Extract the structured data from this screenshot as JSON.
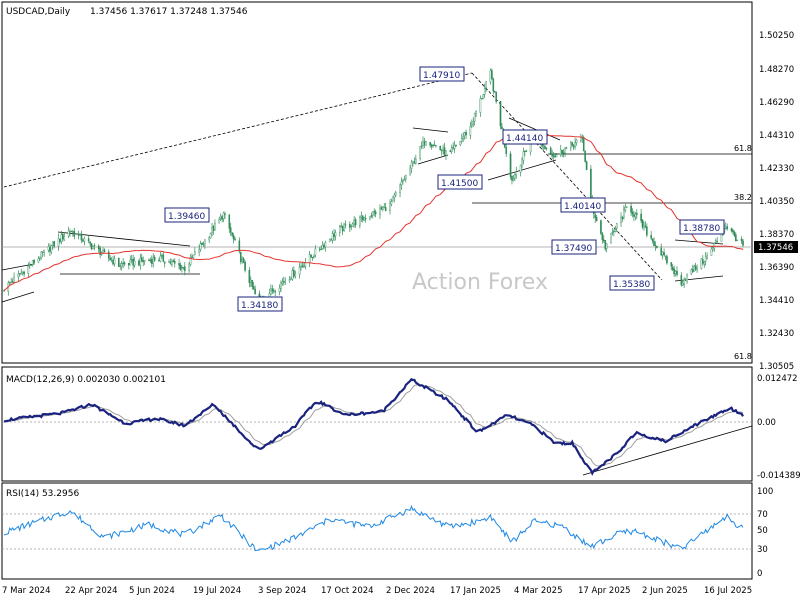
{
  "header": {
    "symbol": "USDCAD,Daily",
    "ohlc": "1.37456 1.37617 1.37248 1.37546"
  },
  "watermark": "Action Forex",
  "price_axis_ticks": [
    "1.50250",
    "1.48270",
    "1.46290",
    "1.44310",
    "1.42330",
    "1.40350",
    "1.38370",
    "1.36390",
    "1.34410",
    "1.32430",
    "1.30505"
  ],
  "current_price": "1.37546",
  "date_ticks": [
    "7 Mar 2024",
    "22 Apr 2024",
    "5 Jun 2024",
    "19 Jul 2024",
    "3 Sep 2024",
    "17 Oct 2024",
    "2 Dec 2024",
    "17 Jan 2025",
    "4 Mar 2025",
    "17 Apr 2025",
    "2 Jun 2025",
    "16 Jul 2025"
  ],
  "price_labels": [
    "1.47910",
    "1.44140",
    "1.41500",
    "1.40140",
    "1.39460",
    "1.38780",
    "1.37490",
    "1.35380",
    "1.34180"
  ],
  "fib_labels": [
    "61.8",
    "38.2",
    "61.8"
  ],
  "macd": {
    "title": "MACD(12,26,9) 0.002030 0.002101",
    "ticks": [
      "0.012472",
      "0.00",
      "-0.014389"
    ]
  },
  "rsi": {
    "title": "RSI(14) 53.2956",
    "ticks": [
      "100",
      "70",
      "50",
      "30",
      "0"
    ]
  },
  "colors": {
    "candle": "#2e8b57",
    "ma": "#e3342f",
    "macd": "#1a237e",
    "signal": "#9e9e9e",
    "rsi": "#1e88e5",
    "label_border": "#1a237e"
  },
  "chart_data": [
    {
      "type": "candlestick",
      "title": "USDCAD,Daily",
      "ylim": [
        1.295,
        1.515
      ],
      "x_range": [
        "2024-03-07",
        "2025-07-31"
      ],
      "price_path": [
        {
          "date": "2024-03-01",
          "price": 1.35
        },
        {
          "date": "2024-04-16",
          "price": 1.385
        },
        {
          "date": "2024-05-20",
          "price": 1.364
        },
        {
          "date": "2024-06-18",
          "price": 1.368
        },
        {
          "date": "2024-07-05",
          "price": 1.362
        },
        {
          "date": "2024-08-01",
          "price": 1.3946
        },
        {
          "date": "2024-08-25",
          "price": 1.3418
        },
        {
          "date": "2024-09-20",
          "price": 1.36
        },
        {
          "date": "2024-10-20",
          "price": 1.385
        },
        {
          "date": "2024-11-25",
          "price": 1.4
        },
        {
          "date": "2024-12-20",
          "price": 1.44
        },
        {
          "date": "2025-01-05",
          "price": 1.43
        },
        {
          "date": "2025-01-20",
          "price": 1.447
        },
        {
          "date": "2025-02-03",
          "price": 1.4791
        },
        {
          "date": "2025-02-18",
          "price": 1.415
        },
        {
          "date": "2025-03-04",
          "price": 1.4414
        },
        {
          "date": "2025-03-20",
          "price": 1.43
        },
        {
          "date": "2025-04-08",
          "price": 1.44
        },
        {
          "date": "2025-04-14",
          "price": 1.4014
        },
        {
          "date": "2025-04-24",
          "price": 1.3749
        },
        {
          "date": "2025-05-10",
          "price": 1.4
        },
        {
          "date": "2025-06-16",
          "price": 1.3538
        },
        {
          "date": "2025-07-05",
          "price": 1.37
        },
        {
          "date": "2025-07-17",
          "price": 1.3878
        },
        {
          "date": "2025-07-29",
          "price": 1.37546
        }
      ]
    },
    {
      "type": "line",
      "title": "MACD(12,26,9) 0.002030 0.002101",
      "ylim": [
        -0.0155,
        0.0135
      ],
      "macd_path": [
        {
          "date": "2024-03-01",
          "value": 0.0005
        },
        {
          "date": "2024-04-10",
          "value": 0.0025
        },
        {
          "date": "2024-05-01",
          "value": 0.005
        },
        {
          "date": "2024-05-25",
          "value": -0.0005
        },
        {
          "date": "2024-06-15",
          "value": 0.001
        },
        {
          "date": "2024-07-05",
          "value": -0.001
        },
        {
          "date": "2024-07-25",
          "value": 0.005
        },
        {
          "date": "2024-08-25",
          "value": -0.008
        },
        {
          "date": "2024-09-20",
          "value": -0.001
        },
        {
          "date": "2024-10-05",
          "value": 0.006
        },
        {
          "date": "2024-10-25",
          "value": 0.002
        },
        {
          "date": "2024-11-20",
          "value": 0.003
        },
        {
          "date": "2024-12-10",
          "value": 0.012
        },
        {
          "date": "2025-01-05",
          "value": 0.006
        },
        {
          "date": "2025-01-25",
          "value": -0.003
        },
        {
          "date": "2025-02-15",
          "value": 0.002
        },
        {
          "date": "2025-03-05",
          "value": -0.001
        },
        {
          "date": "2025-03-20",
          "value": -0.006
        },
        {
          "date": "2025-04-01",
          "value": -0.006
        },
        {
          "date": "2025-04-15",
          "value": -0.0145
        },
        {
          "date": "2025-05-05",
          "value": -0.008
        },
        {
          "date": "2025-05-15",
          "value": -0.003
        },
        {
          "date": "2025-06-05",
          "value": -0.0055
        },
        {
          "date": "2025-06-20",
          "value": -0.002
        },
        {
          "date": "2025-07-05",
          "value": 0.001
        },
        {
          "date": "2025-07-20",
          "value": 0.004
        },
        {
          "date": "2025-07-29",
          "value": 0.002
        }
      ]
    },
    {
      "type": "line",
      "title": "RSI(14) 53.2956",
      "ylim": [
        0,
        100
      ],
      "rsi_path": [
        {
          "date": "2024-03-01",
          "value": 48
        },
        {
          "date": "2024-04-16",
          "value": 75
        },
        {
          "date": "2024-05-10",
          "value": 42
        },
        {
          "date": "2024-06-10",
          "value": 58
        },
        {
          "date": "2024-07-05",
          "value": 45
        },
        {
          "date": "2024-07-30",
          "value": 70
        },
        {
          "date": "2024-08-25",
          "value": 24
        },
        {
          "date": "2024-09-20",
          "value": 42
        },
        {
          "date": "2024-10-15",
          "value": 65
        },
        {
          "date": "2024-11-10",
          "value": 55
        },
        {
          "date": "2024-12-10",
          "value": 78
        },
        {
          "date": "2025-01-05",
          "value": 55
        },
        {
          "date": "2025-01-25",
          "value": 62
        },
        {
          "date": "2025-02-03",
          "value": 68
        },
        {
          "date": "2025-02-18",
          "value": 36
        },
        {
          "date": "2025-03-05",
          "value": 62
        },
        {
          "date": "2025-03-25",
          "value": 56
        },
        {
          "date": "2025-04-14",
          "value": 30
        },
        {
          "date": "2025-05-05",
          "value": 48
        },
        {
          "date": "2025-05-15",
          "value": 50
        },
        {
          "date": "2025-06-16",
          "value": 27
        },
        {
          "date": "2025-07-05",
          "value": 52
        },
        {
          "date": "2025-07-17",
          "value": 68
        },
        {
          "date": "2025-07-29",
          "value": 53
        }
      ]
    }
  ]
}
